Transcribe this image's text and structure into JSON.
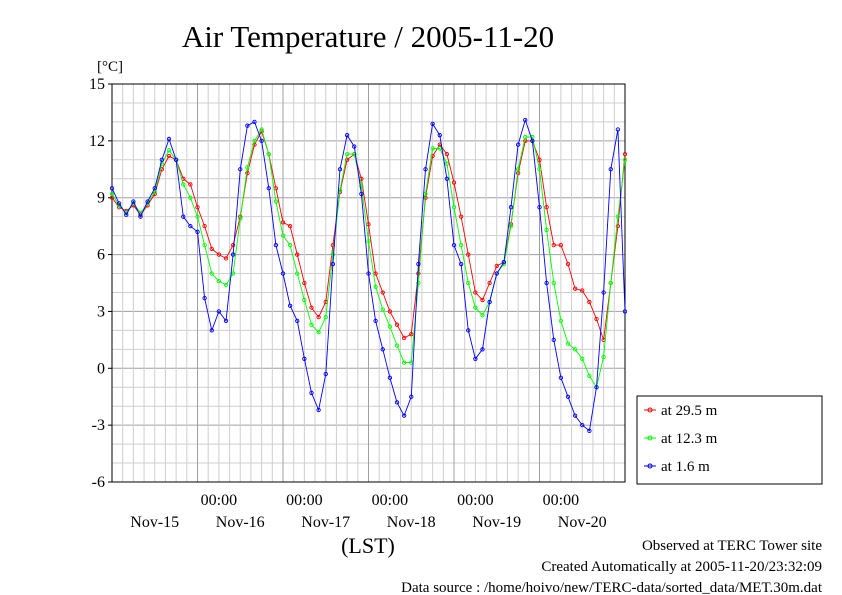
{
  "chart_data": {
    "type": "line",
    "title": "Air Temperature / 2005-11-20",
    "yunit": "[°C]",
    "xlabel": "(LST)",
    "ylim": [
      -6,
      15
    ],
    "yticks": [
      15,
      12,
      9,
      6,
      3,
      0,
      -3,
      -6
    ],
    "xlim_hours": [
      0,
      144
    ],
    "xtick_labels": [
      {
        "time": "",
        "date": "Nov-15"
      },
      {
        "time": "00:00",
        "date": "Nov-16"
      },
      {
        "time": "00:00",
        "date": "Nov-17"
      },
      {
        "time": "00:00",
        "date": "Nov-18"
      },
      {
        "time": "00:00",
        "date": "Nov-19"
      },
      {
        "time": "00:00",
        "date": "Nov-20"
      }
    ],
    "grid": true,
    "legend_position": "right",
    "series": [
      {
        "name": "at 29.5 m",
        "color": "#ff0000",
        "hours": [
          0,
          2,
          4,
          6,
          8,
          10,
          12,
          14,
          16,
          18,
          20,
          22,
          24,
          26,
          28,
          30,
          32,
          34,
          36,
          38,
          40,
          42,
          44,
          46,
          48,
          50,
          52,
          54,
          56,
          58,
          60,
          62,
          64,
          66,
          68,
          70,
          72,
          74,
          76,
          78,
          80,
          82,
          84,
          86,
          88,
          90,
          92,
          94,
          96,
          98,
          100,
          102,
          104,
          106,
          108,
          110,
          112,
          114,
          116,
          118,
          120,
          122,
          124,
          126,
          128,
          130,
          132,
          134,
          136,
          138,
          140,
          142,
          144
        ],
        "values": [
          9.0,
          8.5,
          8.3,
          8.6,
          8.1,
          8.6,
          9.2,
          10.5,
          11.2,
          11.0,
          10.0,
          9.7,
          8.5,
          7.5,
          6.3,
          6.0,
          5.8,
          6.5,
          8.0,
          10.3,
          11.8,
          12.5,
          11.3,
          9.5,
          7.7,
          7.5,
          6.0,
          4.5,
          3.2,
          2.7,
          3.5,
          6.5,
          9.3,
          11.0,
          11.3,
          10.0,
          7.6,
          5.0,
          4.0,
          3.0,
          2.3,
          1.6,
          1.8,
          5.0,
          9.0,
          11.2,
          11.8,
          11.3,
          9.8,
          8.0,
          6.0,
          4.0,
          3.6,
          4.5,
          5.4,
          5.6,
          7.6,
          10.3,
          12.0,
          12.0,
          11.0,
          8.5,
          6.5,
          6.5,
          5.5,
          4.2,
          4.1,
          3.5,
          2.6,
          1.5,
          4.5,
          7.5,
          11.3
        ]
      },
      {
        "name": "at 12.3 m",
        "color": "#00ff00",
        "hours": [
          0,
          2,
          4,
          6,
          8,
          10,
          12,
          14,
          16,
          18,
          20,
          22,
          24,
          26,
          28,
          30,
          32,
          34,
          36,
          38,
          40,
          42,
          44,
          46,
          48,
          50,
          52,
          54,
          56,
          58,
          60,
          62,
          64,
          66,
          68,
          70,
          72,
          74,
          76,
          78,
          80,
          82,
          84,
          86,
          88,
          90,
          92,
          94,
          96,
          98,
          100,
          102,
          104,
          106,
          108,
          110,
          112,
          114,
          116,
          118,
          120,
          122,
          124,
          126,
          128,
          130,
          132,
          134,
          136,
          138,
          140,
          142,
          144
        ],
        "values": [
          9.2,
          8.6,
          8.2,
          8.7,
          8.2,
          8.7,
          9.3,
          10.8,
          11.5,
          11.0,
          9.7,
          9.0,
          8.0,
          6.5,
          5.0,
          4.6,
          4.4,
          5.0,
          7.9,
          10.6,
          12.0,
          12.6,
          11.3,
          8.8,
          7.0,
          6.5,
          5.0,
          3.6,
          2.3,
          1.9,
          2.7,
          6.0,
          9.4,
          11.3,
          11.3,
          9.6,
          6.7,
          4.3,
          3.1,
          2.2,
          1.2,
          0.3,
          0.3,
          4.5,
          9.2,
          11.6,
          11.6,
          10.8,
          8.5,
          6.5,
          4.5,
          3.2,
          2.8,
          3.5,
          5.0,
          5.5,
          7.5,
          10.5,
          12.2,
          12.2,
          10.5,
          7.3,
          4.5,
          2.5,
          1.3,
          1.0,
          0.5,
          -0.4,
          -1.0,
          0.6,
          4.5,
          8.0,
          11.0
        ]
      },
      {
        "name": "at 1.6 m",
        "color": "#0000ff",
        "hours": [
          0,
          2,
          4,
          6,
          8,
          10,
          12,
          14,
          16,
          18,
          20,
          22,
          24,
          26,
          28,
          30,
          32,
          34,
          36,
          38,
          40,
          42,
          44,
          46,
          48,
          50,
          52,
          54,
          56,
          58,
          60,
          62,
          64,
          66,
          68,
          70,
          72,
          74,
          76,
          78,
          80,
          82,
          84,
          86,
          88,
          90,
          92,
          94,
          96,
          98,
          100,
          102,
          104,
          106,
          108,
          110,
          112,
          114,
          116,
          118,
          120,
          122,
          124,
          126,
          128,
          130,
          132,
          134,
          136,
          138,
          140,
          142,
          144
        ],
        "values": [
          9.5,
          8.7,
          8.1,
          8.8,
          8.0,
          8.8,
          9.5,
          11.0,
          12.1,
          11.0,
          8.0,
          7.5,
          7.2,
          3.7,
          2.0,
          3.0,
          2.5,
          6.0,
          10.5,
          12.8,
          13.0,
          12.0,
          9.5,
          6.5,
          5.0,
          3.3,
          2.5,
          0.5,
          -1.3,
          -2.2,
          -0.3,
          5.5,
          10.5,
          12.3,
          11.7,
          9.2,
          5.0,
          2.5,
          1.0,
          -0.5,
          -1.8,
          -2.5,
          -1.5,
          5.5,
          10.5,
          12.9,
          12.3,
          10.0,
          6.5,
          5.5,
          2.0,
          0.5,
          1.0,
          3.5,
          5.0,
          5.6,
          8.5,
          11.8,
          13.1,
          12.0,
          8.5,
          4.5,
          1.5,
          -0.5,
          -1.5,
          -2.5,
          -3.0,
          -3.3,
          -1.0,
          4.0,
          10.5,
          12.6,
          3.0
        ]
      }
    ]
  },
  "footer": {
    "line1": "Observed at TERC Tower site",
    "line2": "Created Automatically at 2005-11-20/23:32:09",
    "line3": "Data source : /home/hoivo/new/TERC-data/sorted_data/MET.30m.dat"
  }
}
